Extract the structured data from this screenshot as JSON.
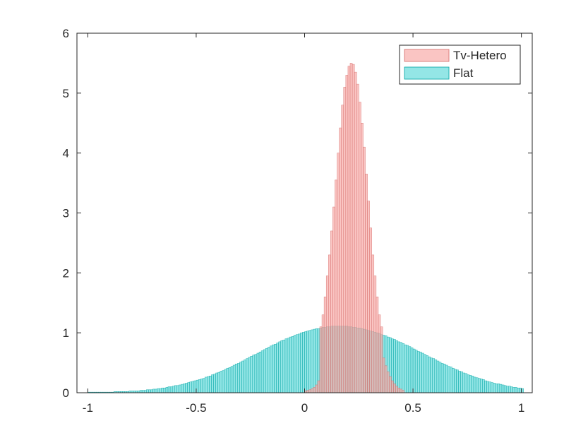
{
  "chart_data": {
    "type": "bar",
    "subtype": "overlaid-histogram",
    "title": "",
    "xlabel": "",
    "ylabel": "",
    "xlim": [
      -1.05,
      1.05
    ],
    "ylim": [
      0,
      6
    ],
    "xticks": [
      -1,
      -0.5,
      0,
      0.5,
      1
    ],
    "xtick_labels": [
      "-1",
      "-0.5",
      "0",
      "0.5",
      "1"
    ],
    "yticks": [
      0,
      1,
      2,
      3,
      4,
      5,
      6
    ],
    "ytick_labels": [
      "0",
      "1",
      "2",
      "3",
      "4",
      "5",
      "6"
    ],
    "grid": false,
    "legend_position": "top-right",
    "bin_width": 0.01,
    "series": [
      {
        "name": "Tv-Hetero",
        "color": "#f8a6a3",
        "edge_color": "#d46a67",
        "opacity": 0.65,
        "bin_start": 0.0,
        "values": [
          0.03,
          0.04,
          0.05,
          0.07,
          0.09,
          0.13,
          0.2,
          1.1,
          1.3,
          1.6,
          1.95,
          2.3,
          2.7,
          3.1,
          3.55,
          4.0,
          4.42,
          4.8,
          5.1,
          5.3,
          5.45,
          5.5,
          5.48,
          5.35,
          5.15,
          4.85,
          4.5,
          4.1,
          3.65,
          3.2,
          2.75,
          2.3,
          1.95,
          1.6,
          1.3,
          1.1,
          0.58,
          0.45,
          0.35,
          0.27,
          0.2,
          0.15,
          0.11,
          0.08,
          0.06,
          0.04
        ]
      },
      {
        "name": "Flat",
        "color": "#4dd6d6",
        "edge_color": "#00a3a3",
        "opacity": 0.6,
        "bin_start": -1.0,
        "values": [
          0.01,
          0.01,
          0.01,
          0.01,
          0.01,
          0.01,
          0.01,
          0.01,
          0.01,
          0.01,
          0.01,
          0.01,
          0.02,
          0.02,
          0.02,
          0.02,
          0.02,
          0.02,
          0.02,
          0.03,
          0.03,
          0.03,
          0.03,
          0.03,
          0.04,
          0.04,
          0.04,
          0.05,
          0.05,
          0.05,
          0.06,
          0.06,
          0.07,
          0.07,
          0.08,
          0.08,
          0.09,
          0.1,
          0.1,
          0.11,
          0.12,
          0.12,
          0.13,
          0.14,
          0.15,
          0.16,
          0.17,
          0.18,
          0.19,
          0.2,
          0.21,
          0.22,
          0.23,
          0.24,
          0.26,
          0.27,
          0.28,
          0.3,
          0.31,
          0.33,
          0.34,
          0.36,
          0.37,
          0.39,
          0.41,
          0.42,
          0.44,
          0.46,
          0.48,
          0.49,
          0.51,
          0.53,
          0.55,
          0.57,
          0.59,
          0.61,
          0.63,
          0.64,
          0.66,
          0.68,
          0.7,
          0.72,
          0.74,
          0.76,
          0.78,
          0.8,
          0.81,
          0.83,
          0.85,
          0.87,
          0.88,
          0.9,
          0.91,
          0.93,
          0.94,
          0.96,
          0.97,
          0.98,
          1.0,
          1.01,
          1.02,
          1.03,
          1.04,
          1.05,
          1.06,
          1.07,
          1.07,
          1.08,
          1.09,
          1.09,
          1.1,
          1.1,
          1.11,
          1.11,
          1.11,
          1.11,
          1.11,
          1.11,
          1.11,
          1.11,
          1.1,
          1.1,
          1.09,
          1.09,
          1.08,
          1.08,
          1.07,
          1.06,
          1.05,
          1.04,
          1.03,
          1.02,
          1.01,
          1.0,
          0.99,
          0.97,
          0.96,
          0.95,
          0.93,
          0.92,
          0.9,
          0.89,
          0.87,
          0.85,
          0.84,
          0.82,
          0.8,
          0.79,
          0.77,
          0.75,
          0.73,
          0.71,
          0.69,
          0.68,
          0.66,
          0.64,
          0.62,
          0.6,
          0.58,
          0.57,
          0.55,
          0.53,
          0.51,
          0.49,
          0.48,
          0.46,
          0.44,
          0.43,
          0.41,
          0.39,
          0.38,
          0.36,
          0.35,
          0.33,
          0.32,
          0.3,
          0.29,
          0.28,
          0.26,
          0.25,
          0.24,
          0.23,
          0.22,
          0.2,
          0.19,
          0.18,
          0.17,
          0.16,
          0.15,
          0.15,
          0.14,
          0.13,
          0.12,
          0.11,
          0.11,
          0.1,
          0.09,
          0.09,
          0.08,
          0.08,
          0.07
        ]
      }
    ]
  }
}
